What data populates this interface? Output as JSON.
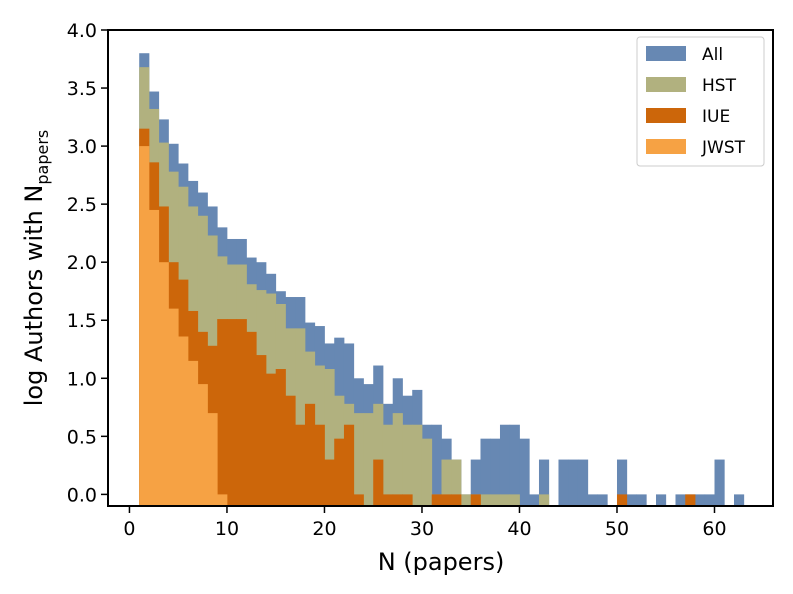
{
  "chart_data": {
    "type": "bar",
    "xlabel": "N (papers)",
    "ylabel": {
      "main": "log Authors with N",
      "subscript": "papers"
    },
    "xlim": [
      -2.2,
      66
    ],
    "ylim": [
      -0.1,
      4.0
    ],
    "xticks": [
      0,
      10,
      20,
      30,
      40,
      50,
      60
    ],
    "yticks": [
      "0.0",
      "0.5",
      "1.0",
      "1.5",
      "2.0",
      "2.5",
      "3.0",
      "3.5",
      "4.0"
    ],
    "bin_width": 1,
    "legend_position": "top-right",
    "grid": false,
    "series": [
      {
        "name": "All",
        "color": "#6788b3",
        "bins": [
          [
            1,
            3.8
          ],
          [
            2,
            3.47
          ],
          [
            3,
            3.23
          ],
          [
            4,
            3.02
          ],
          [
            5,
            2.85
          ],
          [
            6,
            2.7
          ],
          [
            7,
            2.6
          ],
          [
            8,
            2.48
          ],
          [
            9,
            2.3
          ],
          [
            10,
            2.2
          ],
          [
            11,
            2.2
          ],
          [
            12,
            2.04
          ],
          [
            13,
            2.0
          ],
          [
            14,
            1.9
          ],
          [
            15,
            1.75
          ],
          [
            16,
            1.7
          ],
          [
            17,
            1.7
          ],
          [
            18,
            1.48
          ],
          [
            19,
            1.45
          ],
          [
            20,
            1.3
          ],
          [
            21,
            1.35
          ],
          [
            22,
            1.3
          ],
          [
            23,
            1.0
          ],
          [
            24,
            0.95
          ],
          [
            25,
            1.11
          ],
          [
            26,
            0.78
          ],
          [
            27,
            1.0
          ],
          [
            28,
            0.85
          ],
          [
            29,
            0.9
          ],
          [
            30,
            0.6
          ],
          [
            31,
            0.6
          ],
          [
            32,
            0.48
          ],
          [
            33,
            0.3
          ],
          [
            34,
            0.0
          ],
          [
            35,
            0.3
          ],
          [
            36,
            0.48
          ],
          [
            37,
            0.48
          ],
          [
            38,
            0.6
          ],
          [
            39,
            0.6
          ],
          [
            40,
            0.48
          ],
          [
            41,
            0.0
          ],
          [
            42,
            0.3
          ],
          [
            44,
            0.3
          ],
          [
            45,
            0.3
          ],
          [
            46,
            0.3
          ],
          [
            47,
            0.0
          ],
          [
            48,
            0.0
          ],
          [
            50,
            0.3
          ],
          [
            51,
            0.0
          ],
          [
            52,
            0.0
          ],
          [
            54,
            0.0
          ],
          [
            56,
            0.0
          ],
          [
            57,
            0.0
          ],
          [
            58,
            0.0
          ],
          [
            59,
            0.0
          ],
          [
            60,
            0.3
          ],
          [
            62,
            0.0
          ]
        ]
      },
      {
        "name": "HST",
        "color": "#b1b17f",
        "bins": [
          [
            1,
            3.68
          ],
          [
            2,
            3.32
          ],
          [
            3,
            3.03
          ],
          [
            4,
            2.78
          ],
          [
            5,
            2.65
          ],
          [
            6,
            2.48
          ],
          [
            7,
            2.4
          ],
          [
            8,
            2.23
          ],
          [
            9,
            2.05
          ],
          [
            10,
            1.98
          ],
          [
            11,
            1.98
          ],
          [
            12,
            1.81
          ],
          [
            13,
            1.76
          ],
          [
            14,
            1.73
          ],
          [
            15,
            1.64
          ],
          [
            16,
            1.43
          ],
          [
            17,
            1.43
          ],
          [
            18,
            1.23
          ],
          [
            19,
            1.11
          ],
          [
            20,
            1.08
          ],
          [
            21,
            0.85
          ],
          [
            22,
            0.78
          ],
          [
            23,
            0.7
          ],
          [
            24,
            0.7
          ],
          [
            25,
            0.78
          ],
          [
            26,
            0.6
          ],
          [
            27,
            0.7
          ],
          [
            28,
            0.6
          ],
          [
            29,
            0.6
          ],
          [
            30,
            0.48
          ],
          [
            31,
            0.0
          ],
          [
            32,
            0.3
          ],
          [
            33,
            0.3
          ],
          [
            34,
            0.0
          ],
          [
            35,
            0.0
          ],
          [
            36,
            0.0
          ],
          [
            37,
            0.0
          ],
          [
            38,
            0.0
          ],
          [
            39,
            0.0
          ],
          [
            42,
            0.0
          ]
        ]
      },
      {
        "name": "IUE",
        "color": "#cc660a",
        "bins": [
          [
            1,
            3.15
          ],
          [
            2,
            2.86
          ],
          [
            3,
            2.48
          ],
          [
            4,
            2.0
          ],
          [
            5,
            1.85
          ],
          [
            6,
            1.58
          ],
          [
            7,
            1.4
          ],
          [
            8,
            1.28
          ],
          [
            9,
            1.51
          ],
          [
            10,
            1.51
          ],
          [
            11,
            1.51
          ],
          [
            12,
            1.4
          ],
          [
            13,
            1.2
          ],
          [
            14,
            1.04
          ],
          [
            15,
            1.08
          ],
          [
            16,
            0.85
          ],
          [
            17,
            0.6
          ],
          [
            18,
            0.78
          ],
          [
            19,
            0.6
          ],
          [
            20,
            0.3
          ],
          [
            21,
            0.48
          ],
          [
            22,
            0.6
          ],
          [
            23,
            0.0
          ],
          [
            25,
            0.3
          ],
          [
            26,
            0.0
          ],
          [
            27,
            0.0
          ],
          [
            28,
            0.0
          ],
          [
            31,
            0.0
          ],
          [
            32,
            0.0
          ],
          [
            33,
            0.0
          ],
          [
            35,
            0.0
          ],
          [
            50,
            0.0
          ],
          [
            57,
            0.0
          ]
        ]
      },
      {
        "name": "JWST",
        "color": "#f6a244",
        "bins": [
          [
            1,
            3.0
          ],
          [
            2,
            2.45
          ],
          [
            3,
            2.0
          ],
          [
            4,
            1.6
          ],
          [
            5,
            1.36
          ],
          [
            6,
            1.15
          ],
          [
            7,
            0.95
          ],
          [
            8,
            0.7
          ],
          [
            9,
            0.0
          ]
        ]
      }
    ]
  }
}
